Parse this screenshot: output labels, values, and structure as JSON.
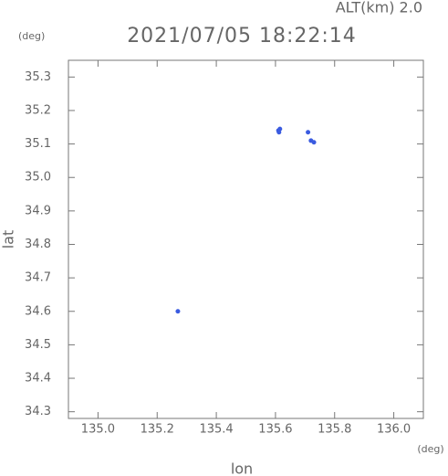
{
  "chart_data": {
    "type": "scatter",
    "title": "2021/07/05 18:22:14",
    "annotation": "ALT(km) 2.0",
    "y_unit": "(deg)",
    "x_unit": "(deg)",
    "x_label": "lon",
    "y_label": "lat",
    "color": "#3a5be0",
    "x": [
      135.27,
      135.61,
      135.615,
      135.612,
      135.71,
      135.72,
      135.73
    ],
    "values": [
      34.6,
      35.14,
      35.145,
      35.135,
      35.135,
      35.11,
      35.105
    ],
    "xlim": [
      134.9,
      136.1
    ],
    "ylim": [
      34.28,
      35.35
    ],
    "xticks": [
      {
        "value": 135,
        "label": "135.0"
      },
      135.2,
      135.4,
      135.6,
      135.8,
      {
        "value": 136,
        "label": "136.0"
      }
    ],
    "yticks": [
      34.3,
      34.4,
      34.5,
      34.6,
      34.7,
      34.8,
      34.9,
      {
        "value": 35,
        "label": "35.0"
      },
      35.1,
      35.2,
      35.3
    ]
  }
}
